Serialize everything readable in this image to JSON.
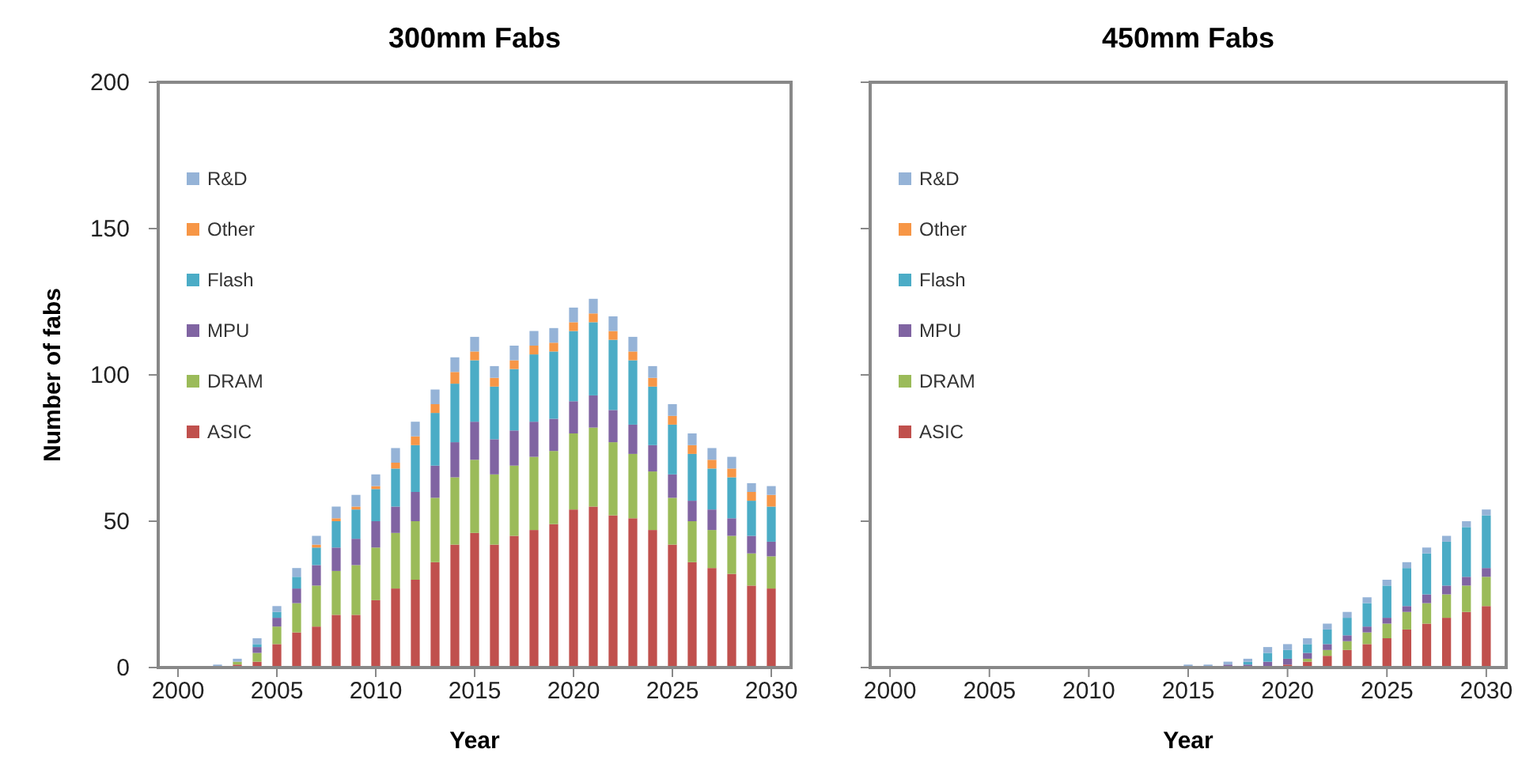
{
  "chart_data": [
    {
      "type": "bar",
      "title": "300mm Fabs",
      "xlabel": "Year",
      "ylabel": "Number of fabs",
      "stacked": true,
      "legend": "top left",
      "grid": false,
      "x": [
        2002,
        2003,
        2004,
        2005,
        2006,
        2007,
        2008,
        2009,
        2010,
        2011,
        2012,
        2013,
        2014,
        2015,
        2016,
        2017,
        2018,
        2019,
        2020,
        2021,
        2022,
        2023,
        2024,
        2025,
        2026,
        2027,
        2028,
        2029,
        2030
      ],
      "xlim": [
        1999,
        2031
      ],
      "xticks": [
        2000,
        2005,
        2010,
        2015,
        2020,
        2025,
        2030
      ],
      "ylim": [
        0,
        200
      ],
      "yticks": [
        0,
        50,
        100,
        150,
        200
      ],
      "series": [
        {
          "name": "ASIC",
          "color": "#c0504d",
          "values": [
            0,
            1,
            2,
            8,
            12,
            14,
            18,
            18,
            23,
            27,
            30,
            36,
            42,
            46,
            42,
            45,
            47,
            49,
            54,
            55,
            52,
            51,
            47,
            42,
            36,
            34,
            32,
            28,
            27
          ]
        },
        {
          "name": "DRAM",
          "color": "#9bbb59",
          "values": [
            0,
            1,
            3,
            6,
            10,
            14,
            15,
            17,
            18,
            19,
            20,
            22,
            23,
            25,
            24,
            24,
            25,
            25,
            26,
            27,
            25,
            22,
            20,
            16,
            14,
            13,
            13,
            11,
            11
          ]
        },
        {
          "name": "MPU",
          "color": "#8064a2",
          "values": [
            0,
            0,
            2,
            3,
            5,
            7,
            8,
            9,
            9,
            9,
            10,
            11,
            12,
            13,
            12,
            12,
            12,
            11,
            11,
            11,
            11,
            10,
            9,
            8,
            7,
            7,
            6,
            6,
            5
          ]
        },
        {
          "name": "Flash",
          "color": "#4bacc6",
          "values": [
            0,
            0,
            1,
            2,
            4,
            6,
            9,
            10,
            11,
            13,
            16,
            18,
            20,
            21,
            18,
            21,
            23,
            23,
            24,
            25,
            24,
            22,
            20,
            17,
            16,
            14,
            14,
            12,
            12
          ]
        },
        {
          "name": "Other",
          "color": "#f79646",
          "values": [
            0,
            0,
            0,
            0,
            0,
            1,
            1,
            1,
            1,
            2,
            3,
            3,
            4,
            3,
            3,
            3,
            3,
            3,
            3,
            3,
            3,
            3,
            3,
            3,
            3,
            3,
            3,
            3,
            4
          ]
        },
        {
          "name": "R&D",
          "color": "#95b3d7",
          "values": [
            1,
            1,
            2,
            2,
            3,
            3,
            4,
            4,
            4,
            5,
            5,
            5,
            5,
            5,
            4,
            5,
            5,
            5,
            5,
            5,
            5,
            5,
            4,
            4,
            4,
            4,
            4,
            3,
            3
          ]
        }
      ]
    },
    {
      "type": "bar",
      "title": "450mm Fabs",
      "xlabel": "Year",
      "stacked": true,
      "legend": "top left",
      "grid": false,
      "tick_labels": "x",
      "x": [
        2015,
        2016,
        2017,
        2018,
        2019,
        2020,
        2021,
        2022,
        2023,
        2024,
        2025,
        2026,
        2027,
        2028,
        2029,
        2030
      ],
      "xlim": [
        1999,
        2031
      ],
      "xticks": [
        2000,
        2005,
        2010,
        2015,
        2020,
        2025,
        2030
      ],
      "ylim": [
        0,
        200
      ],
      "yticks": [
        0,
        50,
        100,
        150,
        200
      ],
      "series": [
        {
          "name": "ASIC",
          "color": "#c0504d",
          "values": [
            0,
            0,
            0,
            0,
            0,
            1,
            2,
            4,
            6,
            8,
            10,
            13,
            15,
            17,
            19,
            21
          ]
        },
        {
          "name": "DRAM",
          "color": "#9bbb59",
          "values": [
            0,
            0,
            0,
            0,
            0,
            0,
            1,
            2,
            3,
            4,
            5,
            6,
            7,
            8,
            9,
            10
          ]
        },
        {
          "name": "MPU",
          "color": "#8064a2",
          "values": [
            0,
            0,
            1,
            1,
            2,
            2,
            2,
            2,
            2,
            2,
            2,
            2,
            3,
            3,
            3,
            3
          ]
        },
        {
          "name": "Flash",
          "color": "#4bacc6",
          "values": [
            0,
            0,
            0,
            1,
            3,
            3,
            3,
            5,
            6,
            8,
            11,
            13,
            14,
            15,
            17,
            18
          ]
        },
        {
          "name": "Other",
          "color": "#f79646",
          "values": [
            0,
            0,
            0,
            0,
            0,
            0,
            0,
            0,
            0,
            0,
            0,
            0,
            0,
            0,
            0,
            0
          ]
        },
        {
          "name": "R&D",
          "color": "#95b3d7",
          "values": [
            1,
            1,
            1,
            1,
            2,
            2,
            2,
            2,
            2,
            2,
            2,
            2,
            2,
            2,
            2,
            2
          ]
        }
      ]
    }
  ]
}
